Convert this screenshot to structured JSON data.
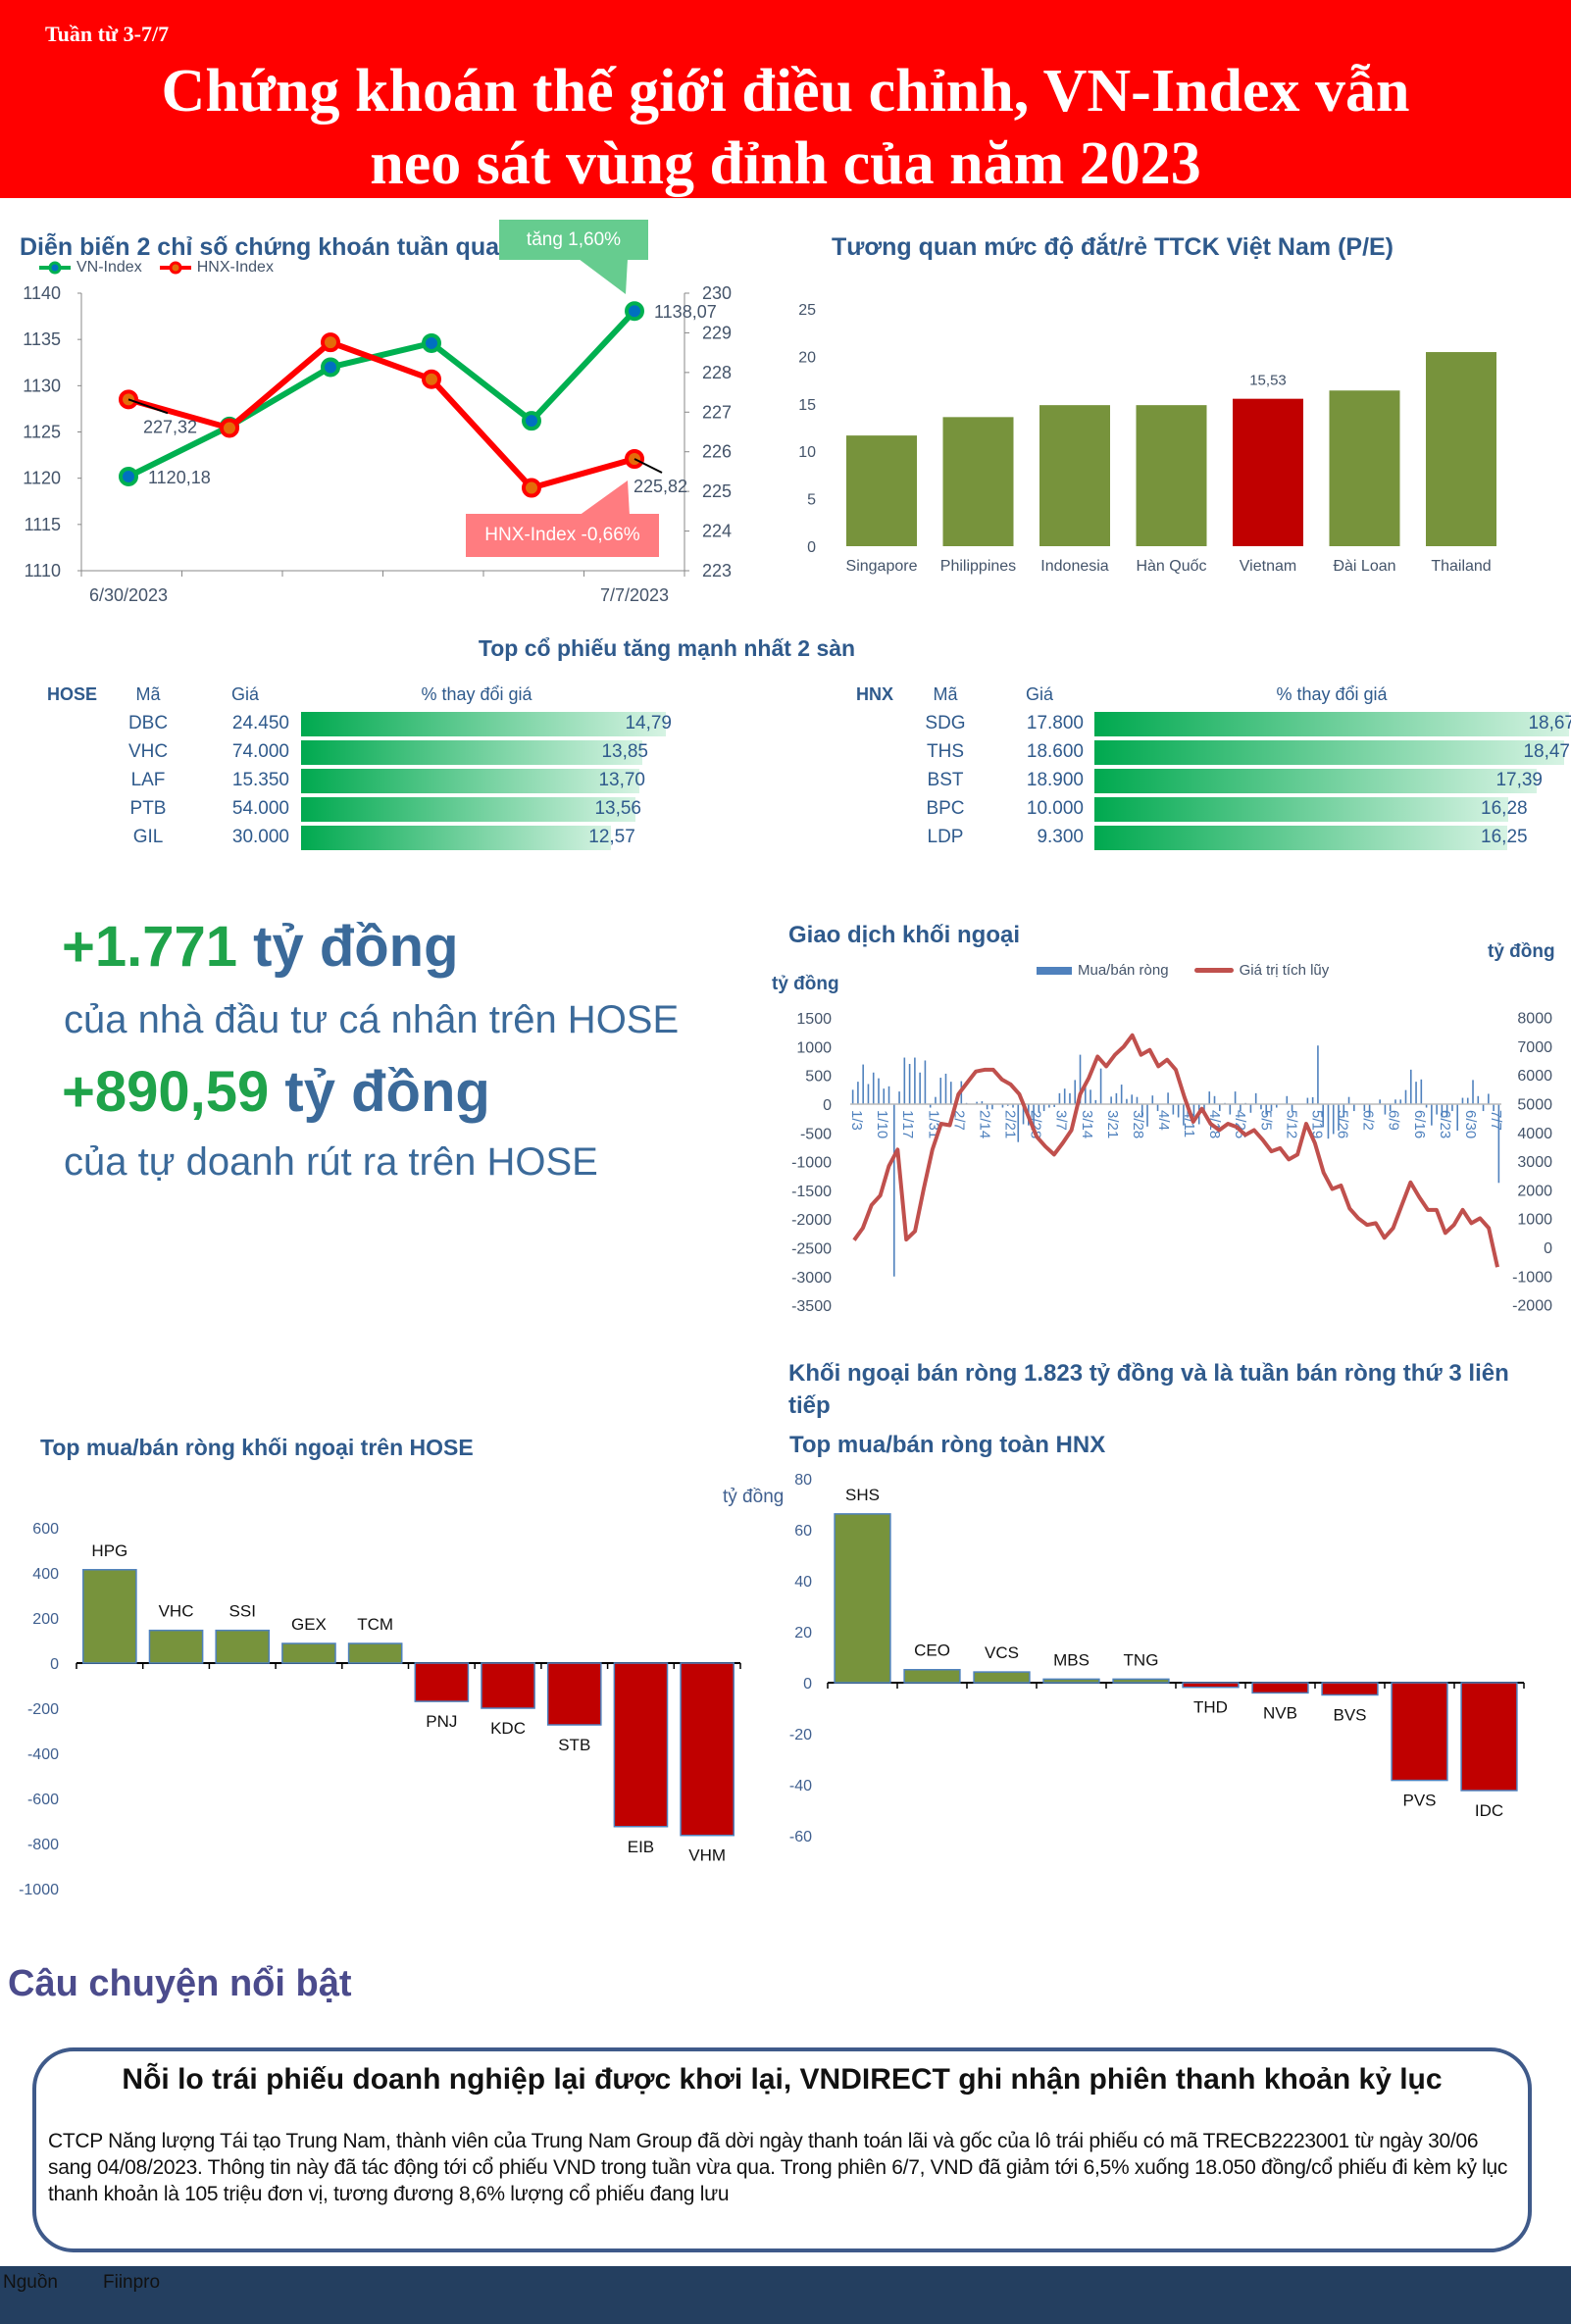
{
  "header": {
    "week": "Tuần từ 3-7/7",
    "title_line1": "Chứng khoán thế giới điều chỉnh, VN-Index vẫn",
    "title_line2": "neo sát vùng đỉnh của năm 2023",
    "bg_color": "#ff0000"
  },
  "big_stats": {
    "stat1_value": "+1.771",
    "stat1_unit": "tỷ đồng",
    "stat1_desc": "của nhà đầu tư cá nhân trên HOSE",
    "stat2_value": "+890,59",
    "stat2_unit": "tỷ đồng",
    "stat2_desc": "của tự doanh rút ra trên HOSE",
    "green": "#1fa34a",
    "blue": "#3b6a9a"
  },
  "foreign_headline": "Khối ngoại bán ròng 1.823 tỷ đồng và là tuần bán ròng thứ 3 liên tiếp",
  "top_stocks": {
    "title": "Top cổ phiếu tăng mạnh nhất 2 sàn",
    "hose": {
      "exchange": "HOSE",
      "col_code": "Mã",
      "col_price": "Giá",
      "col_change": "% thay đổi giá",
      "rows": [
        {
          "code": "DBC",
          "price": "24.450",
          "change": "14,79",
          "value": 14.79
        },
        {
          "code": "VHC",
          "price": "74.000",
          "change": "13,85",
          "value": 13.85
        },
        {
          "code": "LAF",
          "price": "15.350",
          "change": "13,70",
          "value": 13.7
        },
        {
          "code": "PTB",
          "price": "54.000",
          "change": "13,56",
          "value": 13.56
        },
        {
          "code": "GIL",
          "price": "30.000",
          "change": "12,57",
          "value": 12.57
        }
      ]
    },
    "hnx": {
      "exchange": "HNX",
      "col_code": "Mã",
      "col_price": "Giá",
      "col_change": "% thay đổi giá",
      "rows": [
        {
          "code": "SDG",
          "price": "17.800",
          "change": "18,67",
          "value": 18.67
        },
        {
          "code": "THS",
          "price": "18.600",
          "change": "18,47",
          "value": 18.47
        },
        {
          "code": "BST",
          "price": "18.900",
          "change": "17,39",
          "value": 17.39
        },
        {
          "code": "BPC",
          "price": "10.000",
          "change": "16,28",
          "value": 16.28
        },
        {
          "code": "LDP",
          "price": "9.300",
          "change": "16,25",
          "value": 16.25
        }
      ]
    }
  },
  "story": {
    "section_title": "Câu chuyện nổi bật",
    "title": "Nỗi lo trái phiếu doanh nghiệp lại được khơi lại, VNDIRECT ghi nhận phiên thanh khoản kỷ lục",
    "body": "CTCP Năng lượng Tái tạo Trung Nam, thành viên của Trung Nam Group đã dời ngày thanh toán lãi và gốc của lô trái phiếu có mã TRECB2223001  từ ngày 30/06 sang 04/08/2023. Thông tin này đã tác động tới cổ phiếu VND trong tuần vừa qua. Trong phiên 6/7, VND đã giảm tới 6,5% xuống 18.050 đồng/cổ phiếu đi kèm kỷ lục thanh khoản là 105 triệu đơn vị, tương đương 8,6% lượng cổ phiếu đang lưu"
  },
  "footer": {
    "source_label": "Nguồn",
    "source": "Fiinpro",
    "bg_color": "#243f60"
  },
  "chart_data": [
    {
      "type": "line",
      "title": "Diễn biến 2 chỉ số chứng khoán tuần qua",
      "x_tick_labels": [
        "6/30/2023",
        "7/7/2023"
      ],
      "series": [
        {
          "name": "VN-Index",
          "axis": "left",
          "color": "#00b050",
          "marker_color": "#0070c0",
          "values": [
            1120.18,
            1125.6,
            1132.0,
            1134.6,
            1126.2,
            1138.07
          ],
          "labels": [
            "1120,18",
            "",
            "",
            "",
            "",
            "1138,07"
          ]
        },
        {
          "name": "HNX-Index",
          "axis": "right",
          "color": "#ff0000",
          "marker_color": "#e46c0a",
          "values": [
            227.32,
            226.6,
            228.76,
            227.83,
            225.09,
            225.82
          ],
          "labels": [
            "227,32",
            "",
            "",
            "",
            "",
            "225,82"
          ]
        }
      ],
      "y_left": {
        "range": [
          1110,
          1140
        ],
        "ticks": [
          "1110",
          "1115",
          "1120",
          "1125",
          "1130",
          "1135",
          "1140"
        ]
      },
      "y_right": {
        "range": [
          223,
          230
        ],
        "ticks": [
          "223",
          "224",
          "225",
          "226",
          "227",
          "228",
          "229",
          "230"
        ]
      },
      "legend": "top-left",
      "annotations": [
        {
          "text": "tăng 1,60%",
          "color": "#66cc8f"
        },
        {
          "text": "HNX-Index -0,66%",
          "color": "#ff7c80"
        }
      ]
    },
    {
      "type": "bar",
      "title": "Tương quan mức độ đắt/rẻ TTCK Việt Nam (P/E)",
      "categories": [
        "Singapore",
        "Philippines",
        "Indonesia",
        "Hàn Quốc",
        "Vietnam",
        "Đài Loan",
        "Thailand"
      ],
      "values": [
        11.66,
        13.6,
        14.86,
        14.86,
        15.53,
        16.4,
        20.45
      ],
      "data_labels": [
        "",
        "",
        "",
        "",
        "15,53",
        "",
        ""
      ],
      "highlight": "Vietnam",
      "colors": {
        "default": "#77933c",
        "highlight": "#c00000"
      },
      "ylim": [
        0,
        25
      ],
      "y_ticks": [
        "0",
        "5",
        "10",
        "15",
        "20",
        "25"
      ]
    },
    {
      "type": "bar+line",
      "title": "Giao dịch khối ngoại",
      "ylabel_left": "tỷ đồng",
      "ylabel_right": "tỷ đồng",
      "x_tick_labels": [
        "1/3",
        "1/10",
        "1/17",
        "1/31",
        "2/7",
        "2/14",
        "2/21",
        "2/28",
        "3/7",
        "3/14",
        "3/21",
        "3/28",
        "4/4",
        "4/11",
        "4/18",
        "4/25",
        "5/5",
        "5/12",
        "5/19",
        "5/26",
        "6/2",
        "6/9",
        "6/16",
        "6/23",
        "6/30",
        "7/7"
      ],
      "y_left": {
        "range": [
          -3500,
          1500
        ],
        "ticks": [
          "1500",
          "1000",
          "500",
          "0",
          "-500",
          "-1000",
          "-1500",
          "-2000",
          "-2500",
          "-3000",
          "-3500"
        ]
      },
      "y_right": {
        "range": [
          -2000,
          8000
        ],
        "ticks": [
          "8000",
          "7000",
          "6000",
          "5000",
          "4000",
          "3000",
          "2000",
          "1000",
          "0",
          "-1000",
          "-2000"
        ]
      },
      "legend": "top",
      "series": [
        {
          "name": "Mua/bán ròng",
          "type": "bar",
          "axis": "left",
          "color": "#4f81bd",
          "values": [
            250,
            390,
            690,
            350,
            550,
            450,
            270,
            310,
            -3000,
            220,
            810,
            700,
            810,
            550,
            760,
            -60,
            125,
            460,
            530,
            390,
            40,
            400,
            20,
            0,
            40,
            50,
            -90,
            -90,
            0,
            -60,
            -30,
            -60,
            -660,
            -350,
            -370,
            -460,
            -150,
            -120,
            -60,
            -50,
            190,
            270,
            190,
            420,
            860,
            390,
            250,
            70,
            620,
            0,
            130,
            190,
            340,
            90,
            165,
            125,
            -230,
            -390,
            150,
            -120,
            0,
            200,
            -180,
            -230,
            -370,
            -150,
            -220,
            -350,
            -120,
            220,
            140,
            -120,
            20,
            -180,
            220,
            -120,
            20,
            -150,
            190,
            -90,
            -180,
            -120,
            -60,
            0,
            140,
            -120,
            0,
            0,
            110,
            120,
            1020,
            -400,
            -600,
            -520,
            -460,
            -230,
            125,
            -120,
            0,
            -120,
            -230,
            0,
            80,
            -180,
            -120,
            80,
            80,
            245,
            600,
            390,
            430,
            -60,
            -370,
            -180,
            -230,
            -230,
            -120,
            -460,
            110,
            110,
            420,
            140,
            -120,
            180,
            -120,
            -1370
          ]
        },
        {
          "name": "Giá trị tích lũy",
          "type": "line",
          "axis": "right",
          "color": "#c0504d",
          "values": [
            250,
            670,
            1470,
            1800,
            2830,
            3400,
            270,
            560,
            2030,
            3400,
            4300,
            4250,
            5330,
            5730,
            6120,
            6180,
            6180,
            5840,
            5670,
            5330,
            4590,
            3850,
            3510,
            3230,
            3630,
            4080,
            5330,
            5900,
            6640,
            6300,
            6700,
            6980,
            7380,
            6700,
            6870,
            6300,
            6530,
            6180,
            5220,
            4370,
            4820,
            4300,
            4080,
            4300,
            4190,
            3910,
            4080,
            3740,
            3340,
            3450,
            3060,
            3230,
            4300,
            3630,
            2600,
            2030,
            2150,
            1350,
            1010,
            780,
            840,
            330,
            670,
            1470,
            2260,
            1750,
            1300,
            1300,
            500,
            780,
            1300,
            840,
            1010,
            670,
            -690
          ]
        }
      ]
    },
    {
      "type": "bar",
      "title": "Top mua/bán ròng khối ngoại trên HOSE",
      "ylabel": "tỷ đồng",
      "categories": [
        "HPG",
        "VHC",
        "SSI",
        "GEX",
        "TCM",
        "PNJ",
        "KDC",
        "STB",
        "EIB",
        "VHM"
      ],
      "values": [
        414,
        145,
        145,
        87,
        87,
        -170,
        -200,
        -274,
        -725,
        -764
      ],
      "colors": {
        "positive": "#77933c",
        "negative": "#c00000",
        "border": "#4f81bd"
      },
      "ylim": [
        -1000,
        600
      ],
      "y_ticks": [
        "600",
        "400",
        "200",
        "0",
        "-200",
        "-400",
        "-600",
        "-800",
        "-1000"
      ]
    },
    {
      "type": "bar",
      "title": "Top mua/bán ròng toàn HNX",
      "categories": [
        "SHS",
        "CEO",
        "VCS",
        "MBS",
        "TNG",
        "THD",
        "NVB",
        "BVS",
        "PVS",
        "IDC"
      ],
      "values": [
        66.2,
        5.1,
        4.2,
        1.4,
        1.4,
        -1.8,
        -4.0,
        -4.8,
        -38.3,
        -42.3
      ],
      "colors": {
        "positive": "#77933c",
        "negative": "#c00000",
        "border": "#4f81bd"
      },
      "ylim": [
        -60,
        80
      ],
      "y_ticks": [
        "80",
        "60",
        "40",
        "20",
        "0",
        "-20",
        "-40",
        "-60"
      ]
    }
  ]
}
